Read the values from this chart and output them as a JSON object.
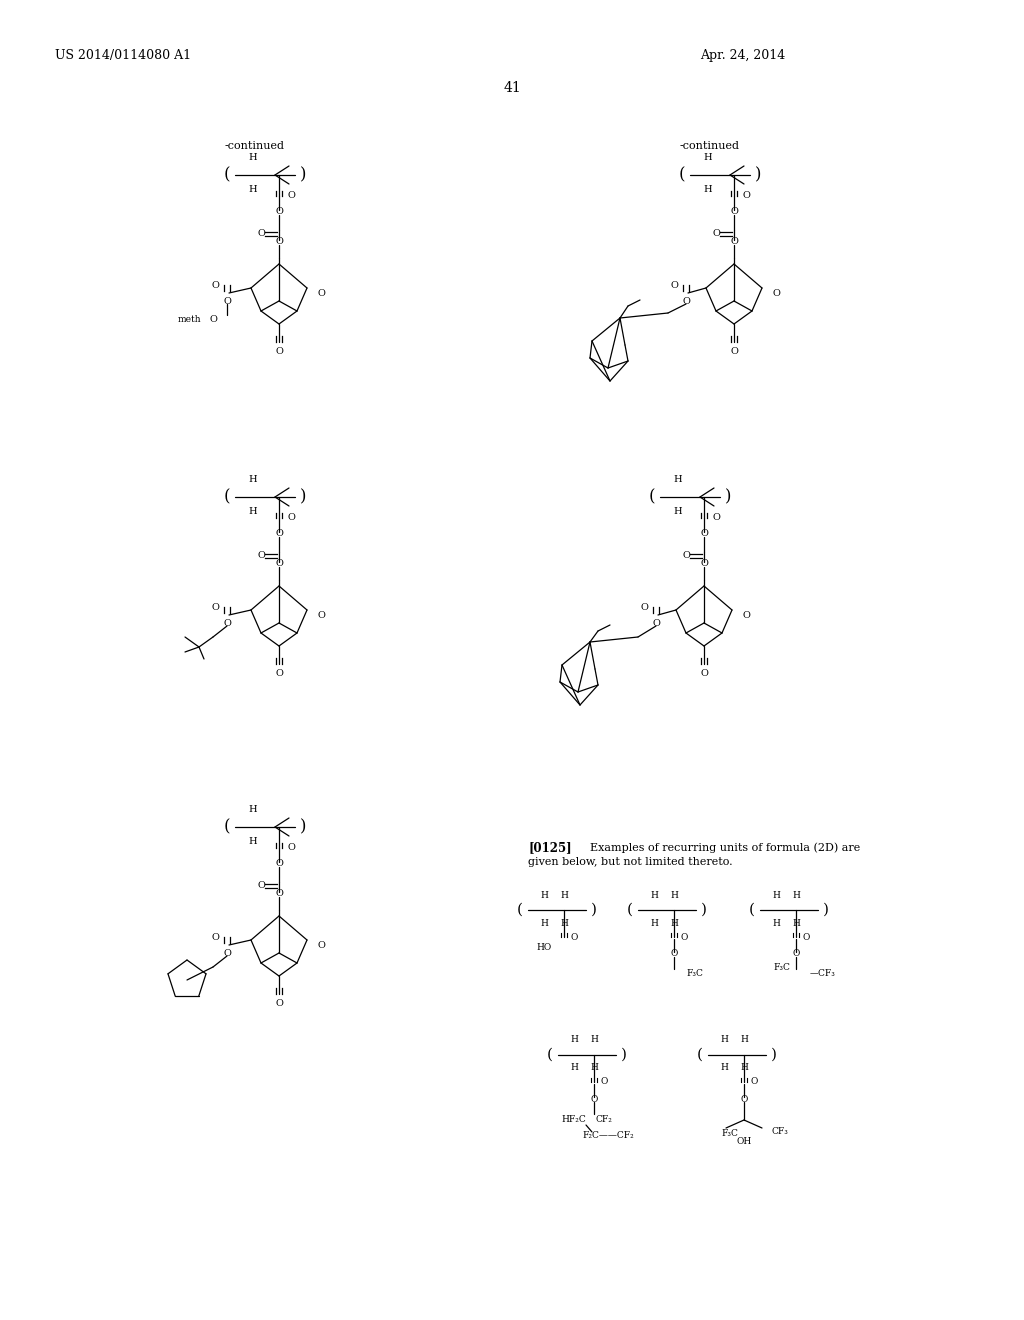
{
  "page_number": "41",
  "patent_left": "US 2014/0114080 A1",
  "patent_right": "Apr. 24, 2014",
  "background_color": "#ffffff",
  "text_color": "#000000"
}
